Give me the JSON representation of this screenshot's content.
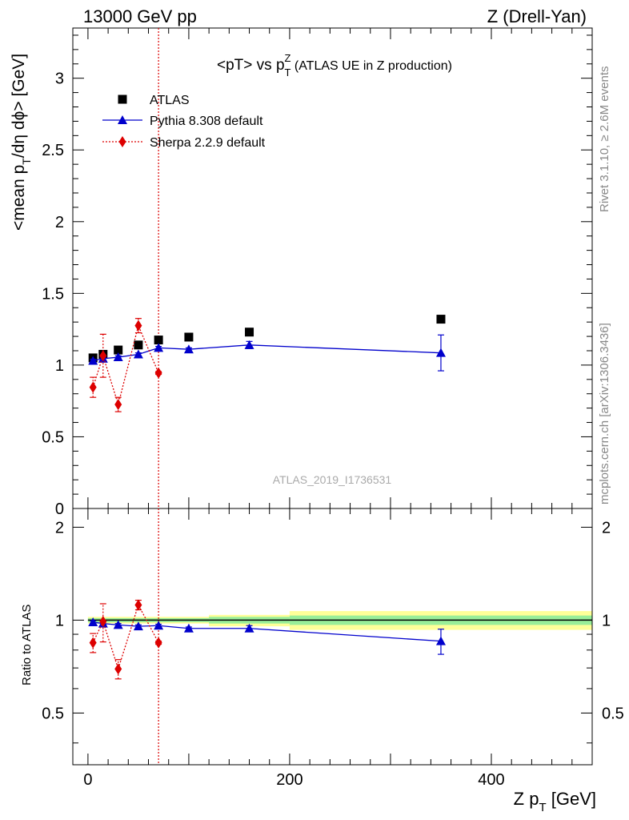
{
  "header": {
    "energy_label": "13000 GeV pp",
    "process_label": "Z (Drell-Yan)"
  },
  "side_labels": {
    "rivet": "Rivet 3.1.10, ≥ 2.6M events",
    "mcplots": "mcplots.cern.ch [arXiv:1306.3436]"
  },
  "watermark": "ATLAS_2019_I1736531",
  "chart_data": [
    {
      "type": "scatter",
      "panel": "main",
      "title_parts": {
        "a": "<pT> vs p",
        "sup": "Z",
        "sub": "T",
        "b": " (ATLAS UE in Z production)"
      },
      "ylabel_parts": {
        "a": "<mean p",
        "sub": "T",
        "b": "/dη dϕ> [GeV]"
      },
      "xlim": [
        -15,
        500
      ],
      "ylim": [
        0,
        3.35
      ],
      "yticks": [
        0,
        0.5,
        1,
        1.5,
        2,
        2.5,
        3
      ],
      "ytick_labels": [
        "0",
        "0.5",
        "1",
        "1.5",
        "2",
        "2.5",
        "3"
      ],
      "legend_position": "top-left",
      "series": [
        {
          "name": "ATLAS",
          "style": "marker-square",
          "color": "#000000",
          "x": [
            5,
            15,
            30,
            50,
            70,
            100,
            160,
            350
          ],
          "y": [
            1.05,
            1.075,
            1.105,
            1.14,
            1.175,
            1.195,
            1.23,
            1.32
          ]
        },
        {
          "name": "Pythia 8.308 default",
          "style": "line-triangle",
          "color": "#0000cc",
          "x": [
            5,
            15,
            30,
            50,
            70,
            100,
            160,
            350
          ],
          "y": [
            1.03,
            1.045,
            1.055,
            1.075,
            1.12,
            1.11,
            1.14,
            1.085
          ],
          "err": [
            0.01,
            0.01,
            0.01,
            0.01,
            0.01,
            0.01,
            0.025,
            0.125
          ]
        },
        {
          "name": "Sherpa 2.2.9 default",
          "style": "dotted-diamond",
          "color": "#dd0000",
          "x": [
            5,
            15,
            30,
            50,
            70
          ],
          "y": [
            0.845,
            1.065,
            0.725,
            1.275,
            0.945
          ],
          "err": [
            0.07,
            0.15,
            0.05,
            0.05,
            0.01
          ]
        }
      ],
      "vertical_line": {
        "x": 70,
        "color": "#dd0000"
      }
    },
    {
      "type": "scatter",
      "panel": "ratio",
      "ylabel": "Ratio to ATLAS",
      "xlabel_parts": {
        "a": "Z p",
        "sub": "T",
        "b": " [GeV]"
      },
      "xlim": [
        -15,
        500
      ],
      "ylim": [
        0.34,
        2.3
      ],
      "log_y": true,
      "yticks": [
        0.5,
        1,
        2
      ],
      "ytick_labels": [
        "0.5",
        "1",
        "2"
      ],
      "xticks": [
        0,
        200,
        400
      ],
      "xtick_labels": [
        "0",
        "200",
        "400"
      ],
      "bands": [
        {
          "x0": 0,
          "x1": 120,
          "green": [
            0.985,
            1.015
          ],
          "yellow": [
            0.975,
            1.025
          ]
        },
        {
          "x0": 120,
          "x1": 200,
          "green": [
            0.975,
            1.025
          ],
          "yellow": [
            0.955,
            1.04
          ]
        },
        {
          "x0": 200,
          "x1": 500,
          "green": [
            0.965,
            1.035
          ],
          "yellow": [
            0.93,
            1.07
          ]
        }
      ],
      "series": [
        {
          "name": "Pythia 8.308 default",
          "color": "#0000cc",
          "x": [
            5,
            15,
            30,
            50,
            70,
            100,
            160,
            350
          ],
          "y": [
            0.985,
            0.975,
            0.965,
            0.955,
            0.96,
            0.94,
            0.94,
            0.855
          ],
          "err": [
            0.01,
            0.01,
            0.01,
            0.01,
            0.01,
            0.01,
            0.02,
            0.08
          ]
        },
        {
          "name": "Sherpa 2.2.9 default",
          "color": "#dd0000",
          "x": [
            5,
            15,
            30,
            50,
            70
          ],
          "y": [
            0.845,
            0.99,
            0.695,
            1.12,
            0.845
          ],
          "err": [
            0.06,
            0.14,
            0.05,
            0.04,
            0.01
          ]
        }
      ]
    }
  ]
}
